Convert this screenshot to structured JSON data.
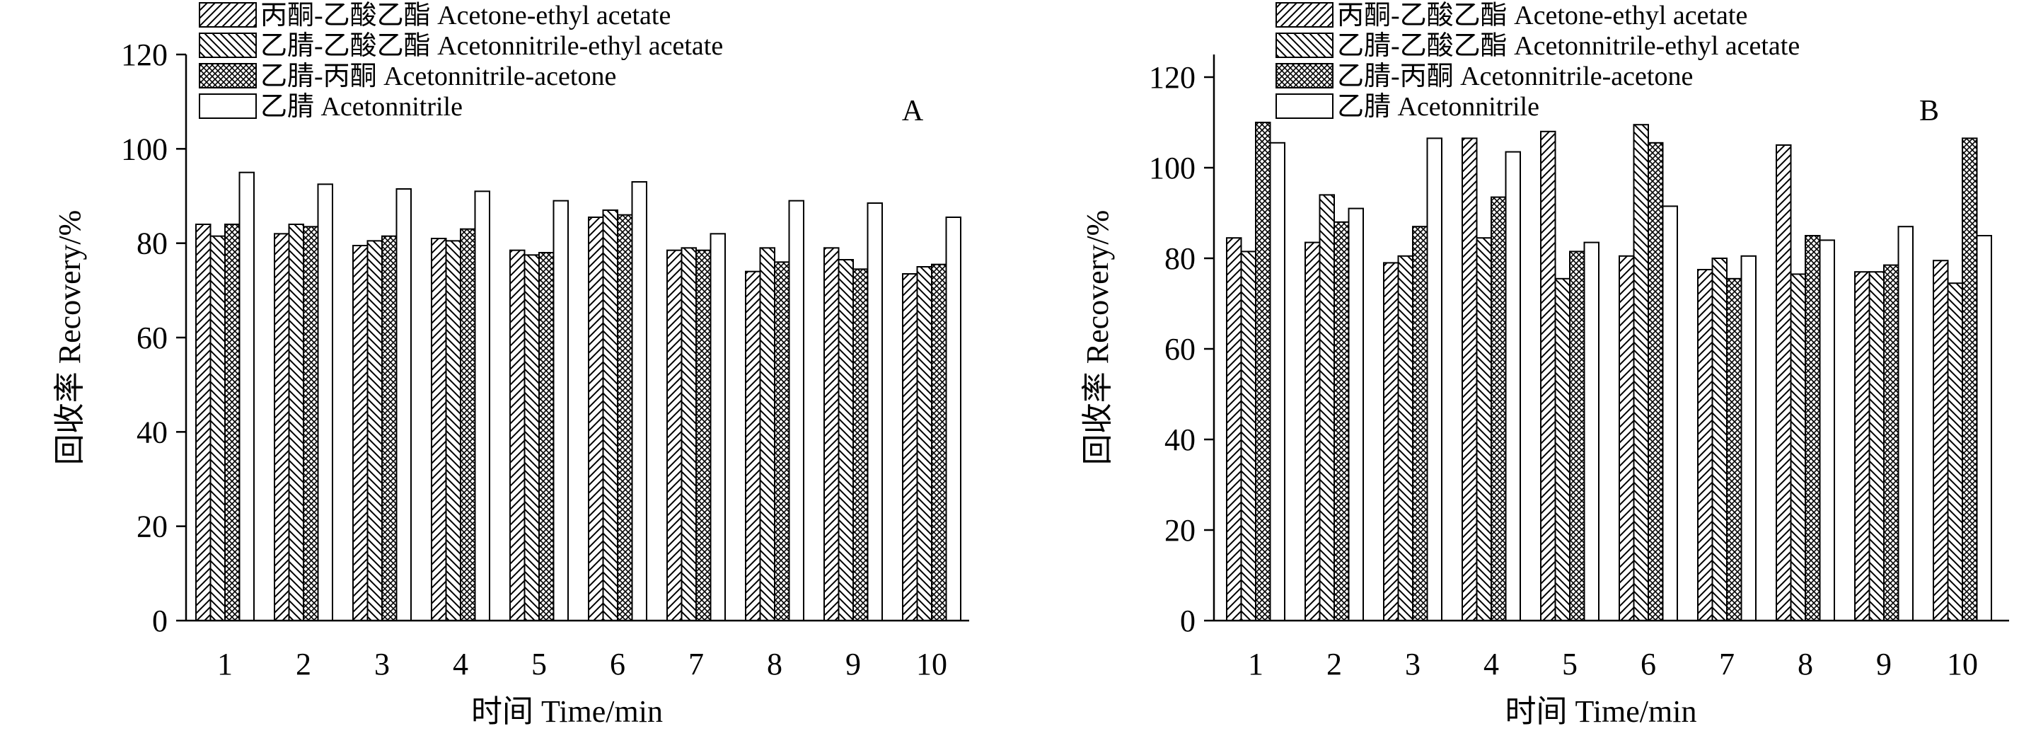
{
  "chart_data": [
    {
      "type": "bar",
      "panel": "A",
      "xlabel": "时间 Time/min",
      "ylabel": "回收率 Recovery/%",
      "ylim": [
        0,
        120
      ],
      "yticks": [
        0,
        20,
        40,
        60,
        80,
        100,
        120
      ],
      "categories": [
        "1",
        "2",
        "3",
        "4",
        "5",
        "6",
        "7",
        "8",
        "9",
        "10"
      ],
      "series": [
        {
          "name": "丙酮-乙酸乙酯 Acetone-ethyl acetate",
          "pattern": "forward-hatch",
          "values": [
            84,
            82,
            79.5,
            81,
            78.5,
            85.5,
            78.5,
            74,
            79,
            73.5
          ]
        },
        {
          "name": "乙腈-乙酸乙酯 Acetonnitrile-ethyl acetate",
          "pattern": "back-hatch",
          "values": [
            81.5,
            84,
            80.5,
            80.5,
            77.5,
            87,
            79,
            79,
            76.5,
            75
          ]
        },
        {
          "name": "乙腈-丙酮 Acetonnitrile-acetone",
          "pattern": "crosshatch",
          "values": [
            84,
            83.5,
            81.5,
            83,
            78,
            86,
            78.5,
            76,
            74.5,
            75.5
          ]
        },
        {
          "name": "乙腈 Acetonnitrile",
          "pattern": "none",
          "values": [
            95,
            92.5,
            91.5,
            91,
            89,
            93,
            82,
            89,
            88.5,
            85.5
          ]
        }
      ]
    },
    {
      "type": "bar",
      "panel": "B",
      "xlabel": "时间 Time/min",
      "ylabel": "回收率 Recovery/%",
      "ylim": [
        0,
        125
      ],
      "yticks": [
        0,
        20,
        40,
        60,
        80,
        100,
        120
      ],
      "categories": [
        "1",
        "2",
        "3",
        "4",
        "5",
        "6",
        "7",
        "8",
        "9",
        "10"
      ],
      "series": [
        {
          "name": "丙酮-乙酸乙酯 Acetone-ethyl acetate",
          "pattern": "forward-hatch",
          "values": [
            84.5,
            83.5,
            79,
            106.5,
            108,
            80.5,
            77.5,
            105,
            77,
            79.5
          ]
        },
        {
          "name": "乙腈-乙酸乙酯 Acetonnitrile-ethyl acetate",
          "pattern": "back-hatch",
          "values": [
            81.5,
            94,
            80.5,
            84.5,
            75.5,
            109.5,
            80,
            76.5,
            77,
            74.5
          ]
        },
        {
          "name": "乙腈-丙酮 Acetonnitrile-acetone",
          "pattern": "crosshatch",
          "values": [
            110,
            88,
            87,
            93.5,
            81.5,
            105.5,
            75.5,
            85,
            78.5,
            106.5
          ]
        },
        {
          "name": "乙腈 Acetonnitrile",
          "pattern": "none",
          "values": [
            105.5,
            91,
            106.5,
            103.5,
            83.5,
            91.5,
            80.5,
            84,
            87,
            85
          ]
        }
      ]
    }
  ]
}
